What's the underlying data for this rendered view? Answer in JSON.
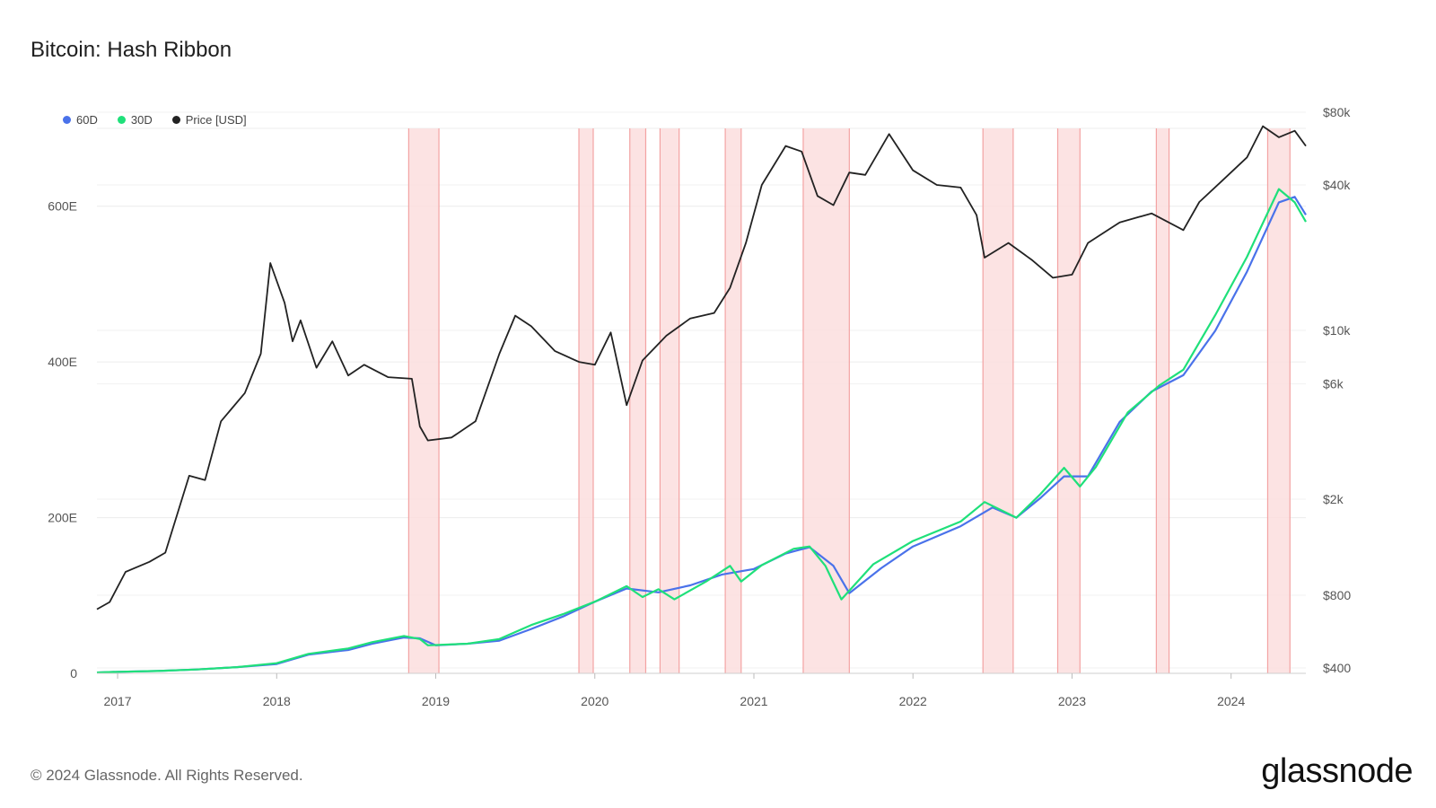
{
  "title": "Bitcoin: Hash Ribbon",
  "footer": "© 2024 Glassnode. All Rights Reserved.",
  "brand": "glassnode",
  "legend": [
    {
      "label": "60D",
      "color": "#4a72ea"
    },
    {
      "label": "30D",
      "color": "#1fe07a"
    },
    {
      "label": "Price [USD]",
      "color": "#222222"
    }
  ],
  "chart_data": {
    "type": "line",
    "title": "Bitcoin: Hash Ribbon",
    "x_range": [
      2016.87,
      2024.47
    ],
    "x_ticks": [
      "2017",
      "2018",
      "2019",
      "2020",
      "2021",
      "2022",
      "2023",
      "2024"
    ],
    "left_axis": {
      "ticks": [
        "0",
        "200E",
        "400E",
        "600E"
      ],
      "values": [
        0,
        200,
        400,
        600
      ],
      "range": [
        0,
        700
      ],
      "unit": "E hash/s"
    },
    "right_axis": {
      "scale": "log",
      "ticks": [
        "$400",
        "$800",
        "$2k",
        "$6k",
        "$10k",
        "$40k",
        "$80k"
      ],
      "values": [
        400,
        800,
        2000,
        6000,
        10000,
        40000,
        80000
      ],
      "range": [
        400,
        80000
      ]
    },
    "capitulation_zones": [
      [
        2018.83,
        2019.02
      ],
      [
        2019.9,
        2019.99
      ],
      [
        2020.22,
        2020.32
      ],
      [
        2020.41,
        2020.53
      ],
      [
        2020.82,
        2020.92
      ],
      [
        2021.31,
        2021.6
      ],
      [
        2022.44,
        2022.63
      ],
      [
        2022.91,
        2023.05
      ],
      [
        2023.53,
        2023.61
      ],
      [
        2024.23,
        2024.37
      ]
    ],
    "series": [
      {
        "name": "60D",
        "axis": "left",
        "color": "#4a72ea",
        "points": [
          [
            2016.87,
            1
          ],
          [
            2017.0,
            2
          ],
          [
            2017.25,
            3
          ],
          [
            2017.5,
            5
          ],
          [
            2017.75,
            8
          ],
          [
            2018.0,
            12
          ],
          [
            2018.2,
            24
          ],
          [
            2018.45,
            30
          ],
          [
            2018.6,
            38
          ],
          [
            2018.8,
            46
          ],
          [
            2018.9,
            45
          ],
          [
            2019.0,
            36
          ],
          [
            2019.2,
            38
          ],
          [
            2019.4,
            42
          ],
          [
            2019.6,
            57
          ],
          [
            2019.8,
            73
          ],
          [
            2020.0,
            92
          ],
          [
            2020.2,
            109
          ],
          [
            2020.4,
            104
          ],
          [
            2020.6,
            113
          ],
          [
            2020.8,
            127
          ],
          [
            2021.0,
            134
          ],
          [
            2021.2,
            154
          ],
          [
            2021.35,
            162
          ],
          [
            2021.5,
            138
          ],
          [
            2021.6,
            103
          ],
          [
            2021.8,
            135
          ],
          [
            2022.0,
            163
          ],
          [
            2022.3,
            189
          ],
          [
            2022.5,
            213
          ],
          [
            2022.65,
            200
          ],
          [
            2022.8,
            225
          ],
          [
            2022.95,
            253
          ],
          [
            2023.1,
            253
          ],
          [
            2023.3,
            323
          ],
          [
            2023.5,
            362
          ],
          [
            2023.7,
            383
          ],
          [
            2023.9,
            440
          ],
          [
            2024.1,
            516
          ],
          [
            2024.3,
            605
          ],
          [
            2024.4,
            612
          ],
          [
            2024.47,
            589
          ]
        ]
      },
      {
        "name": "30D",
        "axis": "left",
        "color": "#1fe07a",
        "points": [
          [
            2016.87,
            1
          ],
          [
            2017.0,
            2
          ],
          [
            2017.25,
            3
          ],
          [
            2017.5,
            5
          ],
          [
            2017.75,
            8
          ],
          [
            2018.0,
            13
          ],
          [
            2018.2,
            25
          ],
          [
            2018.45,
            32
          ],
          [
            2018.6,
            40
          ],
          [
            2018.8,
            48
          ],
          [
            2018.9,
            44
          ],
          [
            2018.95,
            36
          ],
          [
            2019.2,
            38
          ],
          [
            2019.4,
            44
          ],
          [
            2019.6,
            62
          ],
          [
            2019.8,
            76
          ],
          [
            2020.0,
            92
          ],
          [
            2020.2,
            112
          ],
          [
            2020.3,
            98
          ],
          [
            2020.4,
            108
          ],
          [
            2020.5,
            95
          ],
          [
            2020.7,
            118
          ],
          [
            2020.85,
            138
          ],
          [
            2020.92,
            118
          ],
          [
            2021.05,
            139
          ],
          [
            2021.25,
            160
          ],
          [
            2021.35,
            163
          ],
          [
            2021.45,
            138
          ],
          [
            2021.55,
            95
          ],
          [
            2021.75,
            140
          ],
          [
            2022.0,
            170
          ],
          [
            2022.3,
            195
          ],
          [
            2022.45,
            220
          ],
          [
            2022.55,
            210
          ],
          [
            2022.65,
            200
          ],
          [
            2022.8,
            230
          ],
          [
            2022.95,
            264
          ],
          [
            2023.05,
            240
          ],
          [
            2023.15,
            265
          ],
          [
            2023.35,
            335
          ],
          [
            2023.55,
            370
          ],
          [
            2023.7,
            390
          ],
          [
            2023.9,
            460
          ],
          [
            2024.1,
            535
          ],
          [
            2024.3,
            622
          ],
          [
            2024.4,
            605
          ],
          [
            2024.47,
            580
          ]
        ]
      },
      {
        "name": "Price [USD]",
        "axis": "right",
        "color": "#222222",
        "points": [
          [
            2016.87,
            700
          ],
          [
            2016.95,
            750
          ],
          [
            2017.05,
            1000
          ],
          [
            2017.2,
            1100
          ],
          [
            2017.3,
            1200
          ],
          [
            2017.45,
            2500
          ],
          [
            2017.55,
            2400
          ],
          [
            2017.65,
            4200
          ],
          [
            2017.8,
            5500
          ],
          [
            2017.9,
            8000
          ],
          [
            2017.96,
            19000
          ],
          [
            2018.05,
            13000
          ],
          [
            2018.1,
            9000
          ],
          [
            2018.15,
            11000
          ],
          [
            2018.25,
            7000
          ],
          [
            2018.35,
            9000
          ],
          [
            2018.45,
            6500
          ],
          [
            2018.55,
            7200
          ],
          [
            2018.7,
            6400
          ],
          [
            2018.85,
            6300
          ],
          [
            2018.9,
            4000
          ],
          [
            2018.95,
            3500
          ],
          [
            2019.1,
            3600
          ],
          [
            2019.25,
            4200
          ],
          [
            2019.4,
            8000
          ],
          [
            2019.5,
            11500
          ],
          [
            2019.6,
            10400
          ],
          [
            2019.75,
            8200
          ],
          [
            2019.9,
            7400
          ],
          [
            2020.0,
            7200
          ],
          [
            2020.1,
            9800
          ],
          [
            2020.2,
            4900
          ],
          [
            2020.3,
            7500
          ],
          [
            2020.45,
            9500
          ],
          [
            2020.6,
            11200
          ],
          [
            2020.75,
            11800
          ],
          [
            2020.85,
            15000
          ],
          [
            2020.95,
            23000
          ],
          [
            2021.05,
            40000
          ],
          [
            2021.2,
            58000
          ],
          [
            2021.3,
            55000
          ],
          [
            2021.4,
            36000
          ],
          [
            2021.5,
            33000
          ],
          [
            2021.6,
            45000
          ],
          [
            2021.7,
            44000
          ],
          [
            2021.85,
            65000
          ],
          [
            2022.0,
            46000
          ],
          [
            2022.15,
            40000
          ],
          [
            2022.3,
            39000
          ],
          [
            2022.4,
            30000
          ],
          [
            2022.45,
            20000
          ],
          [
            2022.6,
            23000
          ],
          [
            2022.75,
            19500
          ],
          [
            2022.88,
            16500
          ],
          [
            2023.0,
            17000
          ],
          [
            2023.1,
            23000
          ],
          [
            2023.3,
            28000
          ],
          [
            2023.5,
            30500
          ],
          [
            2023.7,
            26000
          ],
          [
            2023.8,
            34000
          ],
          [
            2023.95,
            42000
          ],
          [
            2024.1,
            52000
          ],
          [
            2024.2,
            70000
          ],
          [
            2024.3,
            63000
          ],
          [
            2024.4,
            67000
          ],
          [
            2024.47,
            58000
          ]
        ]
      }
    ]
  }
}
